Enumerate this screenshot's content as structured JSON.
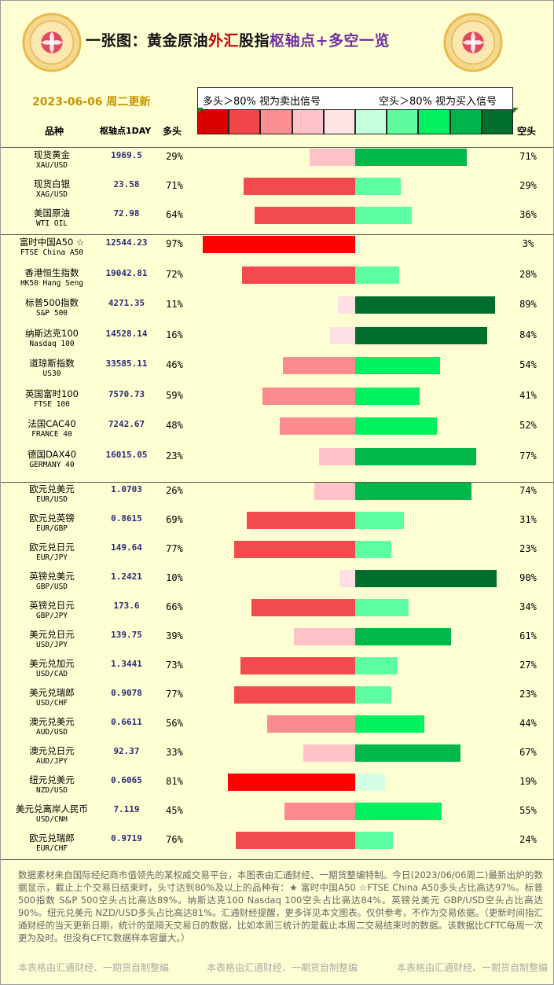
{
  "title": {
    "parts": [
      {
        "text": "一张图：黄金原油",
        "color": "#111111"
      },
      {
        "text": "外汇",
        "color": "#c00000"
      },
      {
        "text": "股指",
        "color": "#111111"
      },
      {
        "text": "枢轴点",
        "color": "#7030a0"
      },
      {
        "text": "+多空一览",
        "color": "#7030a0"
      }
    ]
  },
  "date_text": "2023-06-06 周二更新",
  "legend": {
    "left_text": "多头＞80% 视为卖出信号",
    "right_text": "空头＞80% 视为买入信号",
    "swatch_colors": [
      "#dd0000",
      "#f2474a",
      "#fb8f93",
      "#ffc2c6",
      "#ffe3e5",
      "#c6ffde",
      "#5dfd9f",
      "#00f060",
      "#00b34a",
      "#006e2c"
    ]
  },
  "columns": {
    "name": "品种",
    "pivot": "枢轴点1DAY",
    "long": "多头",
    "short": "空头"
  },
  "colors": {
    "long_levels": [
      "#ffe0e4",
      "#ffc2c6",
      "#fb8b8f",
      "#f24a4e",
      "#ff0000"
    ],
    "short_levels": [
      "#d4ffe6",
      "#5dfda2",
      "#00f060",
      "#00b849",
      "#006e2c"
    ]
  },
  "chart_data": {
    "type": "bar",
    "orientation": "horizontal-diverging",
    "groups": [
      "commodities",
      "indices",
      "forex"
    ],
    "rows": [
      {
        "name_cn": "现货黄金",
        "name_en": "XAU/USD",
        "pivot": "1969.5",
        "long": 29,
        "short": 71,
        "group": "commodities",
        "long_label": "29%",
        "short_label": "71%"
      },
      {
        "name_cn": "现货白银",
        "name_en": "XAG/USD",
        "pivot": "23.58",
        "long": 71,
        "short": 29,
        "group": "commodities",
        "long_label": "71%",
        "short_label": "29%"
      },
      {
        "name_cn": "美国原油",
        "name_en": "WTI OIL",
        "pivot": "72.98",
        "long": 64,
        "short": 36,
        "group": "commodities",
        "long_label": "64%",
        "short_label": "36%"
      },
      {
        "name_cn": "富时中国A50 ☆",
        "name_en": "FTSE China A50",
        "pivot": "12544.23",
        "long": 97,
        "short": 3,
        "group": "indices",
        "long_label": "97%",
        "short_label": "3%"
      },
      {
        "name_cn": "香港恒生指数",
        "name_en": "HK50 Hang Seng",
        "pivot": "19042.81",
        "long": 72,
        "short": 28,
        "group": "indices",
        "long_label": "72%",
        "short_label": "28%"
      },
      {
        "name_cn": "标普500指数",
        "name_en": "S&P 500",
        "pivot": "4271.35",
        "long": 11,
        "short": 89,
        "group": "indices",
        "long_label": "11%",
        "short_label": "89%"
      },
      {
        "name_cn": "纳斯达克100",
        "name_en": "Nasdaq 100",
        "pivot": "14528.14",
        "long": 16,
        "short": 84,
        "group": "indices",
        "long_label": "16%",
        "short_label": "84%"
      },
      {
        "name_cn": "道琼斯指数",
        "name_en": "US30",
        "pivot": "33585.11",
        "long": 46,
        "short": 54,
        "group": "indices",
        "long_label": "46%",
        "short_label": "54%"
      },
      {
        "name_cn": "英国富时100",
        "name_en": "FTSE 100",
        "pivot": "7570.73",
        "long": 59,
        "short": 41,
        "group": "indices",
        "long_label": "59%",
        "short_label": "41%"
      },
      {
        "name_cn": "法国CAC40",
        "name_en": "FRANCE 40",
        "pivot": "7242.67",
        "long": 48,
        "short": 52,
        "group": "indices",
        "long_label": "48%",
        "short_label": "52%"
      },
      {
        "name_cn": "德国DAX40",
        "name_en": "GERMANY 40",
        "pivot": "16015.05",
        "long": 23,
        "short": 77,
        "group": "indices",
        "long_label": "23%",
        "short_label": "77%"
      },
      {
        "name_cn": "欧元兑美元",
        "name_en": "EUR/USD",
        "pivot": "1.0703",
        "long": 26,
        "short": 74,
        "group": "forex",
        "long_label": "26%",
        "short_label": "74%"
      },
      {
        "name_cn": "欧元兑英镑",
        "name_en": "EUR/GBP",
        "pivot": "0.8615",
        "long": 69,
        "short": 31,
        "group": "forex",
        "long_label": "69%",
        "short_label": "31%"
      },
      {
        "name_cn": "欧元兑日元",
        "name_en": "EUR/JPY",
        "pivot": "149.64",
        "long": 77,
        "short": 23,
        "group": "forex",
        "long_label": "77%",
        "short_label": "23%"
      },
      {
        "name_cn": "英镑兑美元",
        "name_en": "GBP/USD",
        "pivot": "1.2421",
        "long": 10,
        "short": 90,
        "group": "forex",
        "long_label": "10%",
        "short_label": "90%"
      },
      {
        "name_cn": "英镑兑日元",
        "name_en": "GBP/JPY",
        "pivot": "173.6",
        "long": 66,
        "short": 34,
        "group": "forex",
        "long_label": "66%",
        "short_label": "34%"
      },
      {
        "name_cn": "美元兑日元",
        "name_en": "USD/JPY",
        "pivot": "139.75",
        "long": 39,
        "short": 61,
        "group": "forex",
        "long_label": "39%",
        "short_label": "61%"
      },
      {
        "name_cn": "美元兑加元",
        "name_en": "USD/CAD",
        "pivot": "1.3441",
        "long": 73,
        "short": 27,
        "group": "forex",
        "long_label": "73%",
        "short_label": "27%"
      },
      {
        "name_cn": "美元兑瑞郎",
        "name_en": "USD/CHF",
        "pivot": "0.9078",
        "long": 77,
        "short": 23,
        "group": "forex",
        "long_label": "77%",
        "short_label": "23%"
      },
      {
        "name_cn": "澳元兑美元",
        "name_en": "AUD/USD",
        "pivot": "0.6611",
        "long": 56,
        "short": 44,
        "group": "forex",
        "long_label": "56%",
        "short_label": "44%"
      },
      {
        "name_cn": "澳元兑日元",
        "name_en": "AUD/JPY",
        "pivot": "92.37",
        "long": 33,
        "short": 67,
        "group": "forex",
        "long_label": "33%",
        "short_label": "67%"
      },
      {
        "name_cn": "纽元兑美元",
        "name_en": "NZD/USD",
        "pivot": "0.6065",
        "long": 81,
        "short": 19,
        "group": "forex",
        "long_label": "81%",
        "short_label": "19%"
      },
      {
        "name_cn": "美元兑离岸人民币",
        "name_en": "USD/CNH",
        "pivot": "7.119",
        "long": 45,
        "short": 55,
        "group": "forex",
        "long_label": "45%",
        "short_label": "55%"
      },
      {
        "name_cn": "欧元兑瑞郎",
        "name_en": "EUR/CHF",
        "pivot": "0.9719",
        "long": 76,
        "short": 24,
        "group": "forex",
        "long_label": "76%",
        "short_label": "24%"
      }
    ]
  },
  "footnote": "数据素材来自国际经纪商市值领先的某权威交易平台，本图表由汇通财经、一期货整编特制。今日(2023/06/06周二)最新出炉的数据显示，截止上个交易日结束时，头寸达到80%及以上的品种有：★ 富时中国A50 ☆FTSE China A50多头占比高达97%。标普500指数 S&P 500空头占比高达89%。纳斯达克100 Nasdaq 100空头占比高达84%。英镑兑美元 GBP/USD空头占比高达90%。纽元兑美元 NZD/USD多头占比高达81%。汇通财经提醒，更多详见本文图表。仅供参考，不作为交易依据。（更新时间指汇通财经的当天更新日期，统计的是隔天交易日的数据，比如本周三统计的是截止本周二交易结束时的数据。该数据比CFTC每周一次更为及时。但没有CFTC数据样本容量大。）",
  "credit": "本表格由汇通财经、一期货自制整编"
}
